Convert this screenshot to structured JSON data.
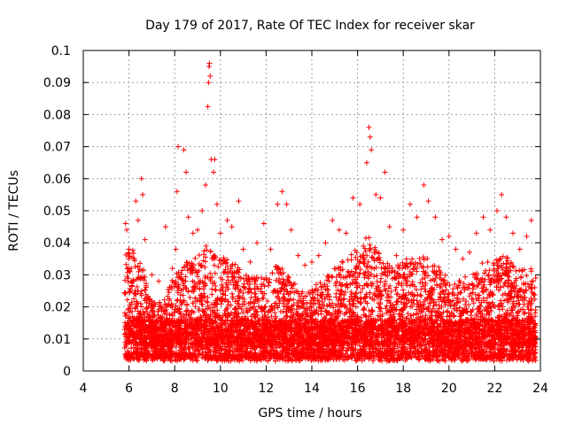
{
  "chart_data": {
    "type": "scatter",
    "title": "Day 179 of 2017, Rate Of TEC Index for receiver skar",
    "xlabel": "GPS time / hours",
    "ylabel": "ROTI / TECUs",
    "xlim": [
      4,
      24
    ],
    "ylim": [
      0,
      0.1
    ],
    "xticks": [
      4,
      6,
      8,
      10,
      12,
      14,
      16,
      18,
      20,
      22,
      24
    ],
    "xtick_labels": [
      "4",
      "6",
      "8",
      "10",
      "12",
      "14",
      "16",
      "18",
      "20",
      "22",
      "24"
    ],
    "yticks": [
      0,
      0.01,
      0.02,
      0.03,
      0.04,
      0.05,
      0.06,
      0.07,
      0.08,
      0.09,
      0.1
    ],
    "ytick_labels": [
      "0",
      "0.01",
      "0.02",
      "0.03",
      "0.04",
      "0.05",
      "0.06",
      "0.07",
      "0.08",
      "0.09",
      "0.1"
    ],
    "grid": true,
    "marker": "+",
    "color": "#ff0000",
    "series": [
      {
        "name": "ROTI",
        "points": [
          [
            5.85,
            0.046
          ],
          [
            5.9,
            0.044
          ],
          [
            6.0,
            0.038
          ],
          [
            6.1,
            0.032
          ],
          [
            6.2,
            0.028
          ],
          [
            6.3,
            0.053
          ],
          [
            6.4,
            0.047
          ],
          [
            6.55,
            0.06
          ],
          [
            6.6,
            0.055
          ],
          [
            6.7,
            0.041
          ],
          [
            7.0,
            0.03
          ],
          [
            7.3,
            0.028
          ],
          [
            7.6,
            0.045
          ],
          [
            7.9,
            0.032
          ],
          [
            8.05,
            0.038
          ],
          [
            8.1,
            0.056
          ],
          [
            8.15,
            0.07
          ],
          [
            8.4,
            0.069
          ],
          [
            8.5,
            0.062
          ],
          [
            8.6,
            0.048
          ],
          [
            8.8,
            0.043
          ],
          [
            9.0,
            0.044
          ],
          [
            9.2,
            0.05
          ],
          [
            9.35,
            0.058
          ],
          [
            9.45,
            0.0825
          ],
          [
            9.48,
            0.09
          ],
          [
            9.5,
            0.095
          ],
          [
            9.52,
            0.096
          ],
          [
            9.55,
            0.092
          ],
          [
            9.6,
            0.066
          ],
          [
            9.7,
            0.062
          ],
          [
            9.75,
            0.066
          ],
          [
            9.85,
            0.052
          ],
          [
            10.0,
            0.043
          ],
          [
            10.3,
            0.047
          ],
          [
            10.5,
            0.045
          ],
          [
            10.8,
            0.053
          ],
          [
            11.0,
            0.038
          ],
          [
            11.3,
            0.034
          ],
          [
            11.6,
            0.04
          ],
          [
            11.9,
            0.046
          ],
          [
            12.2,
            0.038
          ],
          [
            12.5,
            0.052
          ],
          [
            12.7,
            0.056
          ],
          [
            12.9,
            0.052
          ],
          [
            13.1,
            0.044
          ],
          [
            13.4,
            0.036
          ],
          [
            13.7,
            0.033
          ],
          [
            14.0,
            0.034
          ],
          [
            14.3,
            0.036
          ],
          [
            14.6,
            0.04
          ],
          [
            14.9,
            0.047
          ],
          [
            15.2,
            0.044
          ],
          [
            15.5,
            0.043
          ],
          [
            15.8,
            0.054
          ],
          [
            16.1,
            0.052
          ],
          [
            16.4,
            0.065
          ],
          [
            16.5,
            0.076
          ],
          [
            16.55,
            0.073
          ],
          [
            16.6,
            0.069
          ],
          [
            16.8,
            0.055
          ],
          [
            17.0,
            0.054
          ],
          [
            17.2,
            0.062
          ],
          [
            17.4,
            0.045
          ],
          [
            17.7,
            0.036
          ],
          [
            18.0,
            0.044
          ],
          [
            18.3,
            0.052
          ],
          [
            18.6,
            0.048
          ],
          [
            18.9,
            0.058
          ],
          [
            19.1,
            0.053
          ],
          [
            19.4,
            0.048
          ],
          [
            19.7,
            0.041
          ],
          [
            20.0,
            0.042
          ],
          [
            20.3,
            0.038
          ],
          [
            20.6,
            0.035
          ],
          [
            20.9,
            0.037
          ],
          [
            21.2,
            0.043
          ],
          [
            21.5,
            0.048
          ],
          [
            21.8,
            0.044
          ],
          [
            22.1,
            0.05
          ],
          [
            22.3,
            0.055
          ],
          [
            22.5,
            0.048
          ],
          [
            22.8,
            0.043
          ],
          [
            23.1,
            0.038
          ],
          [
            23.4,
            0.042
          ],
          [
            23.6,
            0.047
          ],
          [
            23.75,
            0.026
          ]
        ],
        "band": {
          "x_start": 5.8,
          "x_end": 23.8,
          "baseline_min": 0.004,
          "baseline_typical": 0.012,
          "upper_envelope": [
            [
              5.8,
              0.036
            ],
            [
              6.0,
              0.04
            ],
            [
              6.5,
              0.034
            ],
            [
              7.0,
              0.022
            ],
            [
              7.5,
              0.021
            ],
            [
              8.0,
              0.032
            ],
            [
              8.5,
              0.034
            ],
            [
              9.0,
              0.037
            ],
            [
              9.5,
              0.04
            ],
            [
              10.0,
              0.036
            ],
            [
              10.5,
              0.034
            ],
            [
              11.0,
              0.03
            ],
            [
              11.5,
              0.03
            ],
            [
              12.0,
              0.029
            ],
            [
              12.5,
              0.033
            ],
            [
              13.0,
              0.03
            ],
            [
              13.5,
              0.024
            ],
            [
              14.0,
              0.025
            ],
            [
              14.5,
              0.029
            ],
            [
              15.0,
              0.032
            ],
            [
              15.5,
              0.036
            ],
            [
              16.0,
              0.038
            ],
            [
              16.5,
              0.042
            ],
            [
              17.0,
              0.036
            ],
            [
              17.5,
              0.033
            ],
            [
              18.0,
              0.034
            ],
            [
              18.5,
              0.036
            ],
            [
              19.0,
              0.035
            ],
            [
              19.5,
              0.033
            ],
            [
              20.0,
              0.028
            ],
            [
              20.5,
              0.029
            ],
            [
              21.0,
              0.03
            ],
            [
              21.5,
              0.033
            ],
            [
              22.0,
              0.035
            ],
            [
              22.5,
              0.036
            ],
            [
              23.0,
              0.032
            ],
            [
              23.5,
              0.034
            ],
            [
              23.8,
              0.03
            ]
          ]
        }
      }
    ]
  }
}
